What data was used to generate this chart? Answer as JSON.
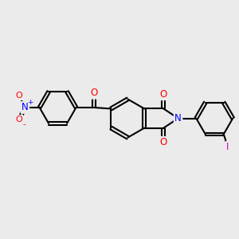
{
  "background_color": "#ebebeb",
  "bond_color": "#000000",
  "bond_width": 1.5,
  "atom_colors": {
    "O": "#ff0000",
    "N": "#0000ff",
    "I": "#cc00cc",
    "C": "#000000"
  },
  "font_size_atom": 8.5
}
